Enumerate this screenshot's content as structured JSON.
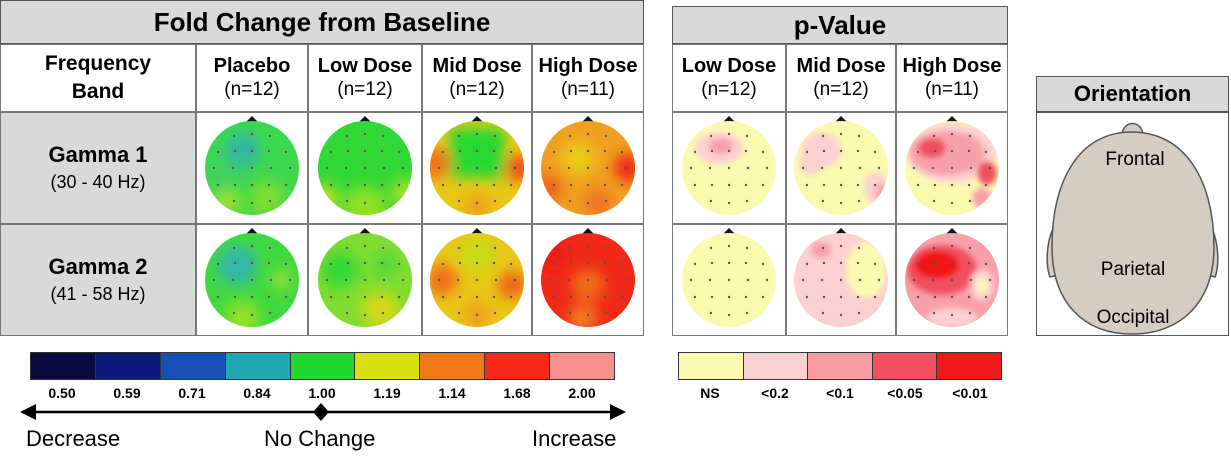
{
  "fold_change": {
    "title": "Fold Change from Baseline",
    "band_header": "Frequency Band",
    "columns": [
      {
        "label": "Placebo",
        "n": "(n=12)"
      },
      {
        "label": "Low Dose",
        "n": "(n=12)"
      },
      {
        "label": "Mid Dose",
        "n": "(n=12)"
      },
      {
        "label": "High Dose",
        "n": "(n=11)"
      }
    ],
    "rows": [
      {
        "label": "Gamma 1",
        "range": "(30 - 40 Hz)"
      },
      {
        "label": "Gamma 2",
        "range": "(41 - 58 Hz)"
      }
    ]
  },
  "p_value": {
    "title": "p-Value",
    "columns": [
      {
        "label": "Low Dose",
        "n": "(n=12)"
      },
      {
        "label": "Mid Dose",
        "n": "(n=12)"
      },
      {
        "label": "High Dose",
        "n": "(n=11)"
      }
    ]
  },
  "orientation": {
    "title": "Orientation",
    "labels": [
      "Frontal",
      "Parietal",
      "Occipital"
    ]
  },
  "fold_legend": {
    "colors": [
      "#0a0a40",
      "#0a1a7a",
      "#1850b8",
      "#20a8b0",
      "#20d830",
      "#d8e010",
      "#f07818",
      "#f82818",
      "#f89090"
    ],
    "labels": [
      "0.50",
      "0.59",
      "0.71",
      "0.84",
      "1.00",
      "1.19",
      "1.14",
      "1.68",
      "2.00"
    ],
    "decrease": "Decrease",
    "no_change": "No Change",
    "increase": "Increase"
  },
  "p_legend": {
    "colors": [
      "#fbfbb0",
      "#fbd0d0",
      "#f89ca0",
      "#f05060",
      "#f01818"
    ],
    "labels": [
      "NS",
      "<0.2",
      "<0.1",
      "<0.05",
      "<0.01"
    ]
  }
}
